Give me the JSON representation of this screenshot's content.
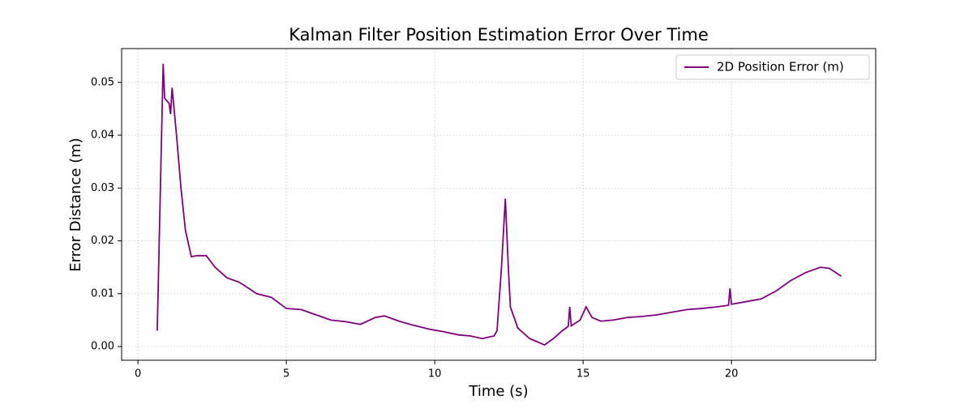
{
  "chart_data": {
    "type": "line",
    "title": "Kalman Filter Position Estimation Error Over Time",
    "x_label": "Time (s)",
    "y_label": "Error Distance (m)",
    "x": [
      0.65,
      0.85,
      0.9,
      1.05,
      1.1,
      1.15,
      1.3,
      1.45,
      1.6,
      1.8,
      2.0,
      2.3,
      2.6,
      3.0,
      3.4,
      3.6,
      4.0,
      4.5,
      5.0,
      5.5,
      6.0,
      6.5,
      7.0,
      7.5,
      8.0,
      8.3,
      8.8,
      9.3,
      9.8,
      10.3,
      10.8,
      11.2,
      11.6,
      12.0,
      12.1,
      12.25,
      12.38,
      12.48,
      12.55,
      12.8,
      13.2,
      13.7,
      14.0,
      14.3,
      14.5,
      14.55,
      14.6,
      14.9,
      15.1,
      15.3,
      15.6,
      16.0,
      16.5,
      17.0,
      17.5,
      18.0,
      18.5,
      19.0,
      19.5,
      19.9,
      19.95,
      20.0,
      20.5,
      21.0,
      21.5,
      22.0,
      22.5,
      23.0,
      23.3,
      23.7
    ],
    "series": [
      {
        "name": "2D Position Error (m)",
        "color": "#800080",
        "values": [
          0.003,
          0.0535,
          0.047,
          0.046,
          0.044,
          0.049,
          0.04,
          0.03,
          0.022,
          0.017,
          0.0172,
          0.0172,
          0.015,
          0.013,
          0.0122,
          0.0115,
          0.01,
          0.0093,
          0.0072,
          0.007,
          0.006,
          0.005,
          0.0047,
          0.0042,
          0.0055,
          0.0058,
          0.0048,
          0.004,
          0.0033,
          0.0028,
          0.0022,
          0.002,
          0.0015,
          0.002,
          0.003,
          0.015,
          0.028,
          0.015,
          0.0075,
          0.0035,
          0.0015,
          0.0003,
          0.0015,
          0.003,
          0.0038,
          0.0075,
          0.0039,
          0.005,
          0.0075,
          0.0055,
          0.0048,
          0.005,
          0.0055,
          0.0057,
          0.006,
          0.0065,
          0.007,
          0.0072,
          0.0075,
          0.0078,
          0.011,
          0.008,
          0.0085,
          0.009,
          0.0105,
          0.0125,
          0.014,
          0.015,
          0.0148,
          0.0133
        ]
      }
    ],
    "xlim": [
      -0.55,
      24.86
    ],
    "ylim": [
      -0.0026,
      0.0564
    ],
    "xticks": [
      0,
      5,
      10,
      15,
      20
    ],
    "yticks": [
      {
        "value": 0,
        "label": "0.00"
      },
      {
        "value": 0.01,
        "label": "0.01"
      },
      {
        "value": 0.02,
        "label": "0.02"
      },
      {
        "value": 0.03,
        "label": "0.03"
      },
      {
        "value": 0.04,
        "label": "0.04"
      },
      {
        "value": 0.05,
        "label": "0.05"
      }
    ],
    "grid": true,
    "legend": "upper right"
  }
}
